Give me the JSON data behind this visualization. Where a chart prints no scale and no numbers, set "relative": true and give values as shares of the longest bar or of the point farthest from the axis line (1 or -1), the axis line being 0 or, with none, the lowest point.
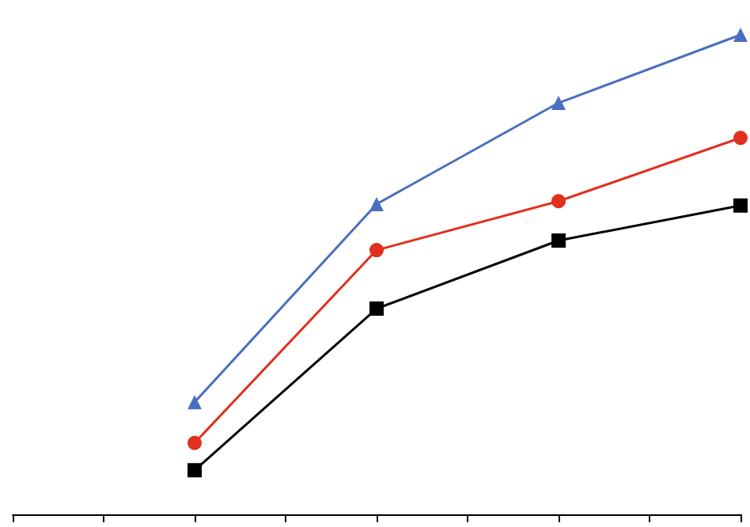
{
  "chart_data": {
    "type": "line",
    "relative": true,
    "categories": [
      null,
      null,
      null,
      null
    ],
    "grid": false,
    "line_style": "solid",
    "series": [
      {
        "color": "#4a6fbf",
        "marker": "triangle",
        "values": [
          0.234,
          0.647,
          0.858,
          1
        ]
      },
      {
        "color": "#e0301e",
        "marker": "circle",
        "values": [
          0.149,
          0.551,
          0.653,
          0.785
        ]
      },
      {
        "color": "#000000",
        "marker": "square",
        "values": [
          0.092,
          0.429,
          0.571,
          0.644
        ]
      }
    ]
  }
}
